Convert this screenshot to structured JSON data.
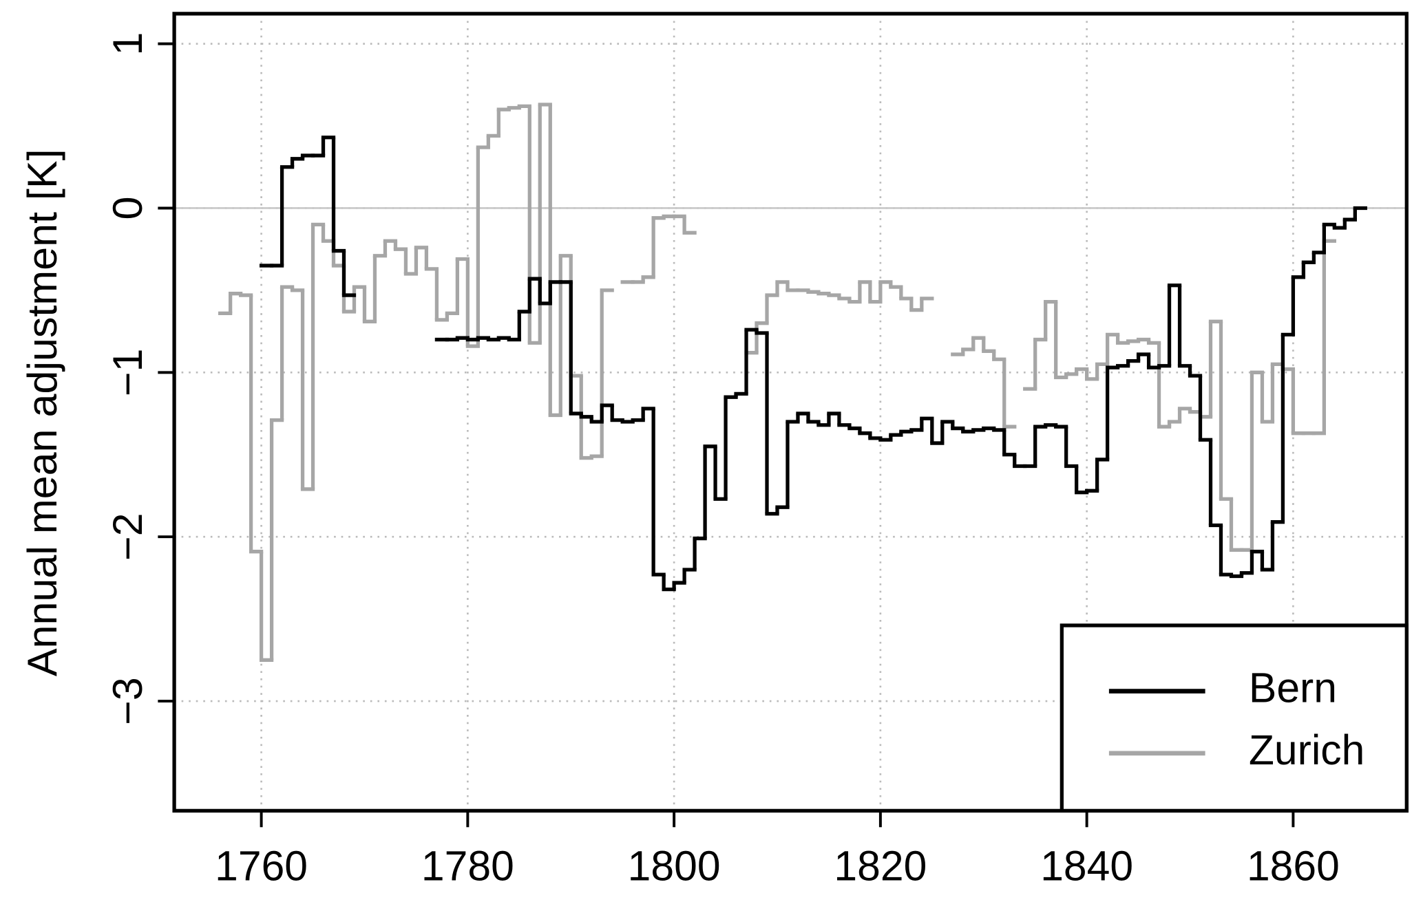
{
  "chart_data": {
    "type": "step",
    "y_label": "Annual mean adjustment [K]",
    "x": [
      1756,
      1757,
      1758,
      1759,
      1760,
      1761,
      1762,
      1763,
      1764,
      1765,
      1766,
      1767,
      1768,
      1769,
      1770,
      1771,
      1772,
      1773,
      1774,
      1775,
      1776,
      1777,
      1778,
      1779,
      1780,
      1781,
      1782,
      1783,
      1784,
      1785,
      1786,
      1787,
      1788,
      1789,
      1790,
      1791,
      1792,
      1793,
      1794,
      1795,
      1796,
      1797,
      1798,
      1799,
      1800,
      1801,
      1802,
      1803,
      1804,
      1805,
      1806,
      1807,
      1808,
      1809,
      1810,
      1811,
      1812,
      1813,
      1814,
      1815,
      1816,
      1817,
      1818,
      1819,
      1820,
      1821,
      1822,
      1823,
      1824,
      1825,
      1826,
      1827,
      1828,
      1829,
      1830,
      1831,
      1832,
      1833,
      1834,
      1835,
      1836,
      1837,
      1838,
      1839,
      1840,
      1841,
      1842,
      1843,
      1844,
      1845,
      1846,
      1847,
      1848,
      1849,
      1850,
      1851,
      1852,
      1853,
      1854,
      1855,
      1856,
      1857,
      1858,
      1859,
      1860,
      1861,
      1862,
      1863,
      1864,
      1865,
      1866
    ],
    "series": [
      {
        "name": "Bern",
        "color": "#000000",
        "values": [
          null,
          null,
          null,
          null,
          -0.35,
          -0.35,
          0.25,
          0.3,
          0.32,
          0.32,
          0.43,
          -0.26,
          -0.53,
          null,
          null,
          null,
          null,
          null,
          null,
          null,
          null,
          -0.8,
          -0.8,
          -0.79,
          -0.8,
          -0.79,
          -0.8,
          -0.79,
          -0.8,
          -0.63,
          -0.43,
          -0.58,
          -0.45,
          -0.45,
          -1.25,
          -1.27,
          -1.3,
          -1.2,
          -1.29,
          -1.3,
          -1.29,
          -1.22,
          -2.23,
          -2.32,
          -2.28,
          -2.2,
          -2.01,
          -1.45,
          -1.77,
          -1.15,
          -1.13,
          -0.74,
          -0.76,
          -1.86,
          -1.82,
          -1.3,
          -1.25,
          -1.3,
          -1.32,
          -1.25,
          -1.32,
          -1.34,
          -1.37,
          -1.4,
          -1.41,
          -1.38,
          -1.36,
          -1.35,
          -1.28,
          -1.43,
          -1.3,
          -1.34,
          -1.36,
          -1.35,
          -1.34,
          -1.35,
          -1.5,
          -1.57,
          -1.57,
          -1.33,
          -1.32,
          -1.33,
          -1.57,
          -1.73,
          -1.72,
          -1.53,
          -0.97,
          -0.96,
          -0.93,
          -0.89,
          -0.97,
          -0.96,
          -0.47,
          -0.96,
          -1.02,
          -1.41,
          -1.93,
          -2.23,
          -2.24,
          -2.22,
          -2.09,
          -2.2,
          -1.91,
          -0.77,
          -0.42,
          -0.33,
          -0.27,
          -0.1,
          -0.12,
          -0.07,
          0
        ]
      },
      {
        "name": "Zurich",
        "color": "#a6a6a6",
        "values": [
          -0.64,
          -0.52,
          -0.53,
          -2.09,
          -2.75,
          -1.29,
          -0.48,
          -0.5,
          -1.71,
          -0.1,
          -0.2,
          -0.35,
          -0.63,
          -0.48,
          -0.69,
          -0.29,
          -0.2,
          -0.25,
          -0.4,
          -0.24,
          -0.37,
          -0.68,
          -0.64,
          -0.31,
          -0.84,
          0.37,
          0.44,
          0.6,
          0.61,
          0.62,
          -0.82,
          0.63,
          -1.26,
          -0.29,
          -1.02,
          -1.52,
          -1.51,
          -0.5,
          null,
          -0.45,
          -0.45,
          -0.42,
          -0.06,
          -0.05,
          -0.05,
          -0.15,
          null,
          null,
          null,
          null,
          null,
          -0.88,
          -0.7,
          -0.53,
          -0.45,
          -0.5,
          -0.5,
          -0.51,
          -0.52,
          -0.53,
          -0.55,
          -0.57,
          -0.45,
          -0.57,
          -0.45,
          -0.48,
          -0.55,
          -0.62,
          -0.55,
          null,
          null,
          -0.89,
          -0.86,
          -0.79,
          -0.87,
          -0.92,
          -1.33,
          null,
          -1.1,
          -0.8,
          -0.57,
          -1.03,
          -1.01,
          -0.98,
          -1.04,
          -0.95,
          -0.77,
          -0.82,
          -0.81,
          -0.8,
          -0.82,
          -1.33,
          -1.3,
          -1.22,
          -1.24,
          -1.27,
          -0.69,
          -1.77,
          -2.08,
          -2.08,
          -1.0,
          -1.3,
          -0.95,
          -0.98,
          -1.37,
          -1.37,
          -1.37,
          -0.2,
          null,
          null,
          null
        ]
      }
    ],
    "xlim": [
      1751.56,
      1871.0
    ],
    "ylim": [
      -3.667,
      1.183
    ],
    "xticks": [
      1760,
      1780,
      1800,
      1820,
      1840,
      1860
    ],
    "yticks": [
      1,
      0,
      {
        "value": -1,
        "label": "−1"
      },
      {
        "value": -2,
        "label": "−2"
      },
      {
        "value": -3,
        "label": "−3"
      }
    ],
    "reference_line": 0,
    "grid": true,
    "legend": "bottomright"
  }
}
